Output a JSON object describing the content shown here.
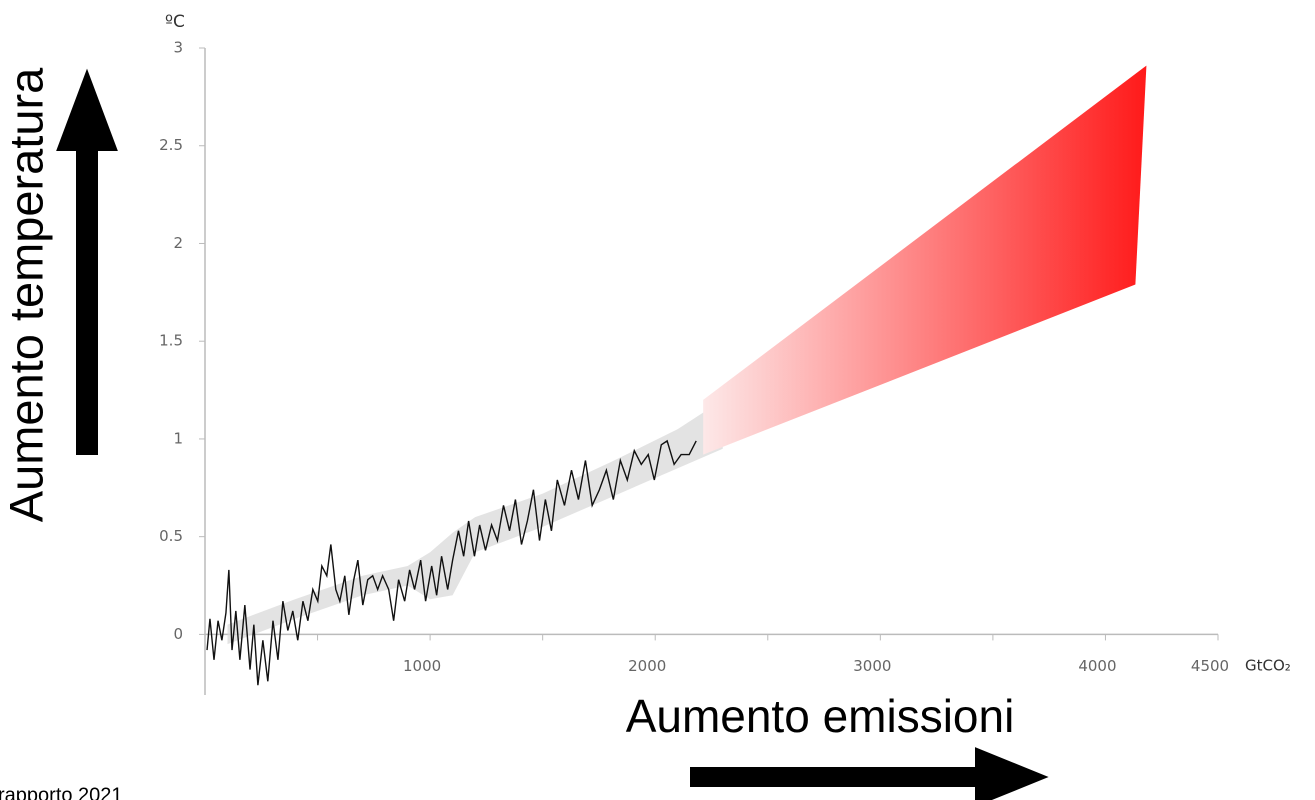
{
  "chart_data": {
    "type": "line",
    "y_unit": "ºC",
    "x_unit": "GtCO₂",
    "y_axis_label": "Aumento temperatura",
    "x_axis_label": "Aumento emissioni",
    "source": "rapporto 2021",
    "xlim": [
      0,
      4500
    ],
    "ylim": [
      -0.31,
      3
    ],
    "xticks": [
      1000,
      2000,
      3000,
      4000,
      4500
    ],
    "xminor_ticks": [
      500,
      1500,
      2500,
      3500
    ],
    "yticks": [
      0,
      0.5,
      1,
      1.5,
      2,
      2.5,
      3
    ],
    "series": [
      {
        "color": "#111111",
        "x": [
          9,
          22,
          40,
          58,
          75,
          93,
          106,
          120,
          137,
          155,
          177,
          200,
          217,
          235,
          257,
          279,
          302,
          324,
          346,
          368,
          390,
          412,
          435,
          457,
          479,
          501,
          519,
          541,
          559,
          581,
          599,
          621,
          639,
          661,
          679,
          701,
          723,
          745,
          767,
          789,
          816,
          838,
          860,
          887,
          909,
          931,
          958,
          980,
          1007,
          1029,
          1051,
          1078,
          1100,
          1126,
          1149,
          1171,
          1197,
          1220,
          1246,
          1273,
          1299,
          1326,
          1353,
          1379,
          1406,
          1432,
          1459,
          1486,
          1512,
          1539,
          1565,
          1597,
          1628,
          1659,
          1690,
          1720,
          1752,
          1783,
          1814,
          1845,
          1876,
          1907,
          1938,
          1969,
          1996,
          2027,
          2053,
          2084,
          2115,
          2151,
          2182
        ],
        "values": [
          -0.08,
          0.08,
          -0.13,
          0.07,
          -0.03,
          0.11,
          0.33,
          -0.08,
          0.12,
          -0.13,
          0.15,
          -0.18,
          0.05,
          -0.26,
          -0.03,
          -0.24,
          0.07,
          -0.13,
          0.17,
          0.02,
          0.12,
          -0.03,
          0.17,
          0.07,
          0.23,
          0.17,
          0.35,
          0.3,
          0.46,
          0.23,
          0.17,
          0.3,
          0.1,
          0.28,
          0.38,
          0.15,
          0.28,
          0.3,
          0.23,
          0.3,
          0.23,
          0.07,
          0.28,
          0.17,
          0.33,
          0.23,
          0.38,
          0.17,
          0.35,
          0.2,
          0.4,
          0.23,
          0.38,
          0.53,
          0.4,
          0.58,
          0.4,
          0.56,
          0.43,
          0.56,
          0.48,
          0.66,
          0.53,
          0.69,
          0.46,
          0.58,
          0.74,
          0.48,
          0.69,
          0.53,
          0.79,
          0.66,
          0.84,
          0.69,
          0.89,
          0.66,
          0.74,
          0.84,
          0.69,
          0.89,
          0.79,
          0.94,
          0.87,
          0.92,
          0.79,
          0.97,
          0.99,
          0.87,
          0.92,
          0.92,
          0.99
        ]
      }
    ],
    "band": {
      "color": "#d9d9d9",
      "x": [
        100,
        400,
        700,
        900,
        1000,
        1100,
        1200,
        1500,
        1800,
        2100,
        2300
      ],
      "lower": [
        -0.05,
        0.08,
        0.2,
        0.25,
        0.18,
        0.2,
        0.42,
        0.55,
        0.7,
        0.85,
        0.95
      ],
      "upper": [
        0.05,
        0.18,
        0.3,
        0.35,
        0.42,
        0.52,
        0.6,
        0.72,
        0.88,
        1.05,
        1.2
      ]
    },
    "projection": {
      "colors": [
        "#fde8e8",
        "#ff1a1a"
      ],
      "lower": {
        "x": [
          2213,
          4133
        ],
        "y": [
          0.92,
          1.79
        ]
      },
      "upper": {
        "x": [
          2213,
          4182
        ],
        "y": [
          1.2,
          2.91
        ]
      }
    }
  }
}
